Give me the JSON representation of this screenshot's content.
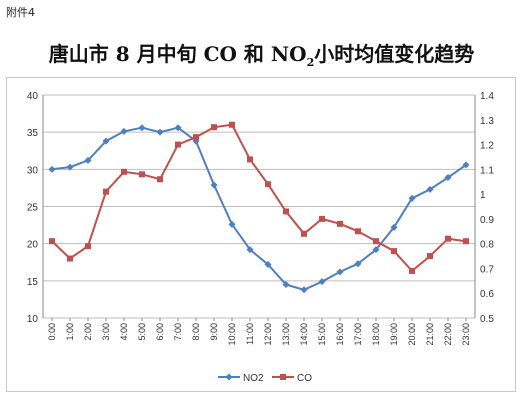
{
  "header_note": "附件4",
  "title": {
    "prefix": "唐山市 8 月中旬 CO 和 NO",
    "subscript": "2",
    "suffix": "小时均值变化趋势"
  },
  "chart_data": {
    "type": "line",
    "title": "唐山市 8 月中旬 CO 和 NO2 小时均值变化趋势",
    "categories": [
      "0:00",
      "1:00",
      "2:00",
      "3:00",
      "4:00",
      "5:00",
      "6:00",
      "7:00",
      "8:00",
      "9:00",
      "10:00",
      "11:00",
      "12:00",
      "13:00",
      "14:00",
      "15:00",
      "16:00",
      "17:00",
      "18:00",
      "19:00",
      "20:00",
      "21:00",
      "22:00",
      "23:00"
    ],
    "series": [
      {
        "name": "NO2",
        "axis": "left",
        "color": "#4f7fc1",
        "marker": "diamond",
        "values": [
          30.0,
          30.3,
          31.2,
          33.8,
          35.1,
          35.6,
          35.0,
          35.6,
          33.8,
          27.9,
          22.6,
          19.2,
          17.2,
          14.5,
          13.8,
          14.9,
          16.2,
          17.3,
          19.2,
          22.2,
          26.1,
          27.3,
          28.9,
          30.6
        ]
      },
      {
        "name": "CO",
        "axis": "right",
        "color": "#c0504d",
        "marker": "square",
        "values": [
          0.81,
          0.74,
          0.79,
          1.01,
          1.09,
          1.08,
          1.06,
          1.2,
          1.23,
          1.27,
          1.28,
          1.14,
          1.04,
          0.93,
          0.84,
          0.9,
          0.88,
          0.85,
          0.81,
          0.77,
          0.69,
          0.75,
          0.82,
          0.81
        ]
      }
    ],
    "ylim_left": [
      10,
      40
    ],
    "yticks_left": [
      "10",
      "15",
      "20",
      "25",
      "30",
      "35",
      "40"
    ],
    "ylim_right": [
      0.5,
      1.4
    ],
    "yticks_right": [
      "0.5",
      "0.6",
      "0.7",
      "0.8",
      "0.9",
      "1",
      "1.1",
      "1.2",
      "1.3",
      "1.4"
    ],
    "grid": true,
    "legend_position": "bottom"
  }
}
